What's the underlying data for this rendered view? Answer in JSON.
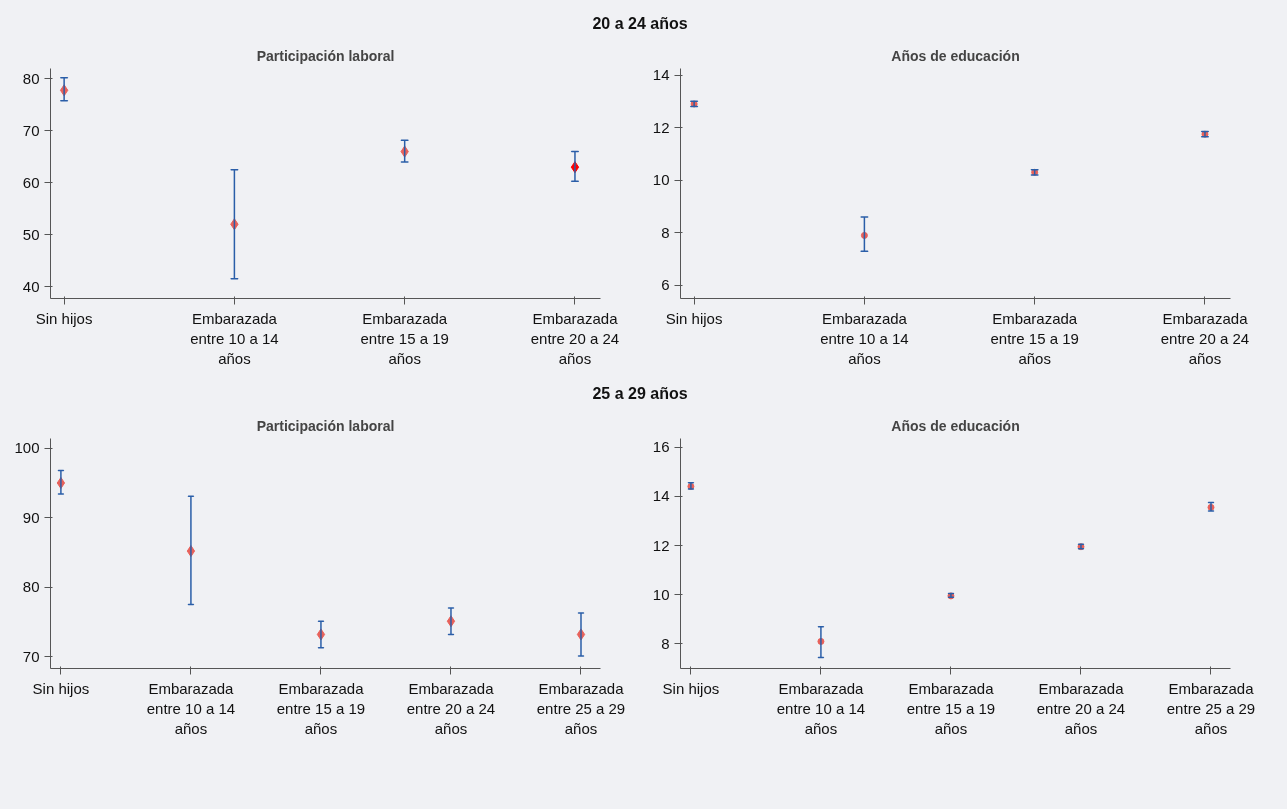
{
  "chart_data": [
    {
      "type": "scatter",
      "title": "Participación laboral",
      "annotations": [
        "20 a 24 años"
      ],
      "marker": "diamond",
      "categories": [
        "Sin hijos",
        "Embarazada entre 10 a 14 años",
        "Embarazada entre 15 a 19 años",
        "Embarazada entre 20 a 24 años"
      ],
      "values": [
        77.8,
        52,
        66,
        63
      ],
      "colors": [
        "#e8615a",
        "#e8615a",
        "#e8615a",
        "#ff0000"
      ],
      "errors": [
        [
          75.8,
          80.2
        ],
        [
          41.5,
          62.5
        ],
        [
          64,
          68.2
        ],
        [
          60.3,
          66
        ]
      ],
      "ylim": [
        37.7,
        82
      ],
      "yticks": [
        40,
        50,
        60,
        70,
        80
      ],
      "grid": false
    },
    {
      "type": "scatter",
      "title": "Años de educación",
      "marker": "circle",
      "categories": [
        "Sin hijos",
        "Embarazada entre 10 a 14 años",
        "Embarazada entre 15 a 19 años",
        "Embarazada entre 20 a 24 años"
      ],
      "values": [
        12.9,
        7.9,
        10.3,
        11.75
      ],
      "colors": [
        "#e8615a",
        "#e8615a",
        "#e8615a",
        "#e8615a"
      ],
      "errors": [
        [
          12.8,
          13.0
        ],
        [
          7.3,
          8.6
        ],
        [
          10.2,
          10.4
        ],
        [
          11.65,
          11.85
        ]
      ],
      "ylim": [
        5.5,
        14.25
      ],
      "yticks": [
        6,
        8,
        10,
        12,
        14
      ],
      "grid": false
    },
    {
      "type": "scatter",
      "title": "Participación laboral",
      "annotations": [
        "25 a 29 años"
      ],
      "marker": "diamond",
      "categories": [
        "Sin hijos",
        "Embarazada entre 10 a 14 años",
        "Embarazada entre 15 a 19 años",
        "Embarazada entre 20 a 24 años",
        "Embarazada entre 25 a 29 años"
      ],
      "values": [
        95,
        85.2,
        73.2,
        75.1,
        73.2
      ],
      "colors": [
        "#e8615a",
        "#e8615a",
        "#e8615a",
        "#e8615a",
        "#e8615a"
      ],
      "errors": [
        [
          93.4,
          96.8
        ],
        [
          77.5,
          93.1
        ],
        [
          71.3,
          75.1
        ],
        [
          73.2,
          77.0
        ],
        [
          70.1,
          76.3
        ]
      ],
      "ylim": [
        68.3,
        101.4
      ],
      "yticks": [
        70,
        80,
        90,
        100
      ],
      "grid": false
    },
    {
      "type": "scatter",
      "title": "Años de educación",
      "marker": "circle",
      "categories": [
        "Sin hijos",
        "Embarazada entre 10 a 14 años",
        "Embarazada entre 15 a 19 años",
        "Embarazada entre 20 a 24 años",
        "Embarazada entre 25 a 29 años"
      ],
      "values": [
        14.4,
        8.1,
        9.95,
        11.95,
        13.55
      ],
      "colors": [
        "#e8615a",
        "#e8615a",
        "#e8615a",
        "#e8615a",
        "#e8615a"
      ],
      "errors": [
        [
          14.3,
          14.55
        ],
        [
          7.45,
          8.7
        ],
        [
          9.9,
          10.05
        ],
        [
          11.87,
          12.05
        ],
        [
          13.4,
          13.75
        ]
      ],
      "ylim": [
        7.0,
        16.35
      ],
      "yticks": [
        8,
        10,
        12,
        14,
        16
      ],
      "grid": false
    }
  ]
}
